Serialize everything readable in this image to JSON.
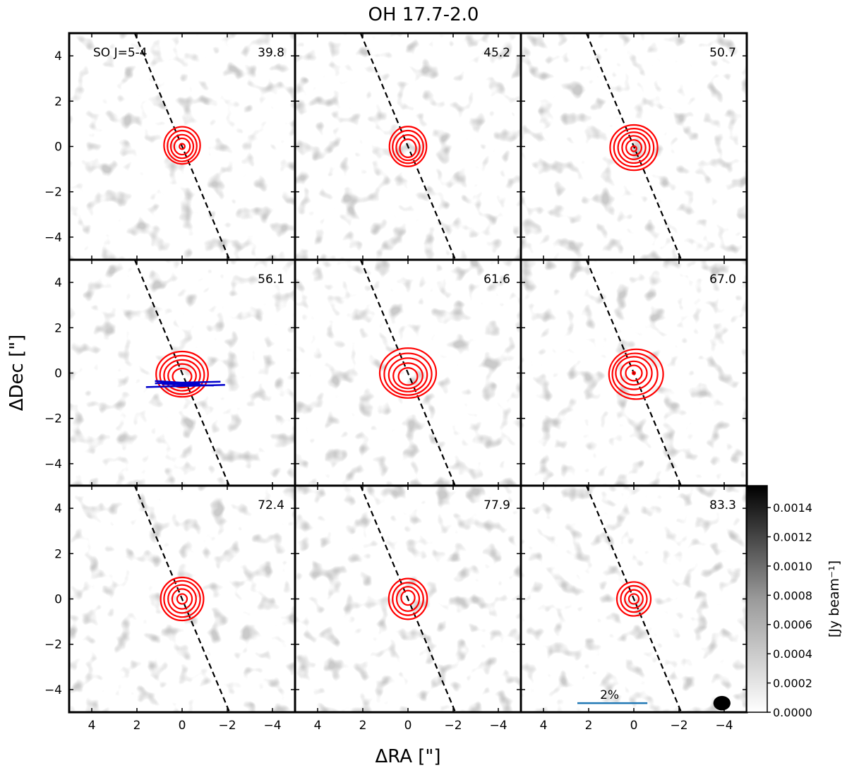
{
  "chart_data": {
    "type": "heatmap",
    "title": "OH 17.7-2.0",
    "xlabel": "ΔRA [\"]",
    "ylabel": "ΔDec [\"]",
    "xlim": [
      5,
      -5
    ],
    "ylim": [
      -5,
      5
    ],
    "x_ticks": [
      4,
      2,
      0,
      -2,
      -4
    ],
    "y_ticks": [
      4,
      2,
      0,
      -2,
      -4
    ],
    "x_tick_labels": [
      "4",
      "2",
      "0",
      "−2",
      "−4"
    ],
    "y_tick_labels": [
      "4",
      "2",
      "0",
      "−2",
      "−4"
    ],
    "line_label": "SO J=5-4",
    "velocities": [
      "39.8",
      "45.2",
      "50.7",
      "56.1",
      "61.6",
      "67.0",
      "72.4",
      "77.9",
      "83.3"
    ],
    "contour_color": "#ff0000",
    "vector_color": "#0000cc",
    "dashed_line": {
      "from": [
        2.1,
        5
      ],
      "to": [
        -2.1,
        -5
      ]
    },
    "panels": [
      {
        "velocity": "39.8",
        "contours": [
          {
            "rx": 0.8,
            "ry": 0.82,
            "cx": 0,
            "cy": 0.05
          },
          {
            "rx": 0.65,
            "ry": 0.68,
            "cx": 0,
            "cy": 0.02
          },
          {
            "rx": 0.5,
            "ry": 0.52,
            "cx": 0,
            "cy": 0
          },
          {
            "rx": 0.35,
            "ry": 0.36,
            "cx": 0,
            "cy": 0
          },
          {
            "rx": 0.12,
            "ry": 0.12,
            "cx": 0,
            "cy": 0
          }
        ]
      },
      {
        "velocity": "45.2",
        "contours": [
          {
            "rx": 0.82,
            "ry": 0.88,
            "cx": 0,
            "cy": 0
          },
          {
            "rx": 0.68,
            "ry": 0.72,
            "cx": 0,
            "cy": -0.02
          },
          {
            "rx": 0.52,
            "ry": 0.56,
            "cx": 0,
            "cy": -0.05
          },
          {
            "rx": 0.36,
            "ry": 0.4,
            "cx": 0,
            "cy": -0.08
          }
        ]
      },
      {
        "velocity": "50.7",
        "contours": [
          {
            "rx": 1.05,
            "ry": 1.0,
            "cx": 0,
            "cy": -0.05
          },
          {
            "rx": 0.88,
            "ry": 0.84,
            "cx": 0,
            "cy": -0.05
          },
          {
            "rx": 0.7,
            "ry": 0.68,
            "cx": 0,
            "cy": -0.05
          },
          {
            "rx": 0.52,
            "ry": 0.52,
            "cx": 0,
            "cy": -0.05
          },
          {
            "rx": 0.34,
            "ry": 0.34,
            "cx": 0,
            "cy": -0.05
          },
          {
            "rx": 0.12,
            "ry": 0.12,
            "cx": 0,
            "cy": -0.1
          }
        ]
      },
      {
        "velocity": "56.1",
        "contours": [
          {
            "rx": 1.15,
            "ry": 1.0,
            "cx": 0,
            "cy": -0.05
          },
          {
            "rx": 0.98,
            "ry": 0.85,
            "cx": 0,
            "cy": -0.08
          },
          {
            "rx": 0.8,
            "ry": 0.68,
            "cx": 0,
            "cy": -0.1
          },
          {
            "rx": 0.62,
            "ry": 0.52,
            "cx": 0,
            "cy": -0.12
          },
          {
            "rx": 0.42,
            "ry": 0.35,
            "cx": 0,
            "cy": -0.15
          }
        ],
        "vectors": [
          {
            "x1": 1.6,
            "y1": -0.62,
            "x2": -1.9,
            "y2": -0.52
          },
          {
            "x1": 1.2,
            "y1": -0.45,
            "x2": -1.7,
            "y2": -0.38
          },
          {
            "x1": 1.2,
            "y1": -0.35,
            "x2": -0.8,
            "y2": -0.48
          },
          {
            "x1": 0.9,
            "y1": -0.48,
            "x2": -1.4,
            "y2": -0.55
          }
        ]
      },
      {
        "velocity": "61.6",
        "contours": [
          {
            "rx": 1.25,
            "ry": 1.1,
            "cx": 0,
            "cy": 0
          },
          {
            "rx": 1.05,
            "ry": 0.92,
            "cx": 0,
            "cy": -0.05
          },
          {
            "rx": 0.85,
            "ry": 0.74,
            "cx": 0,
            "cy": -0.08
          },
          {
            "rx": 0.65,
            "ry": 0.56,
            "cx": 0,
            "cy": -0.12
          },
          {
            "rx": 0.42,
            "ry": 0.38,
            "cx": 0,
            "cy": -0.15
          }
        ]
      },
      {
        "velocity": "67.0",
        "contours": [
          {
            "rx": 1.2,
            "ry": 1.1,
            "cx": -0.1,
            "cy": -0.05
          },
          {
            "rx": 1.0,
            "ry": 0.92,
            "cx": -0.05,
            "cy": -0.05
          },
          {
            "rx": 0.8,
            "ry": 0.72,
            "cx": 0,
            "cy": 0
          },
          {
            "rx": 0.58,
            "ry": 0.52,
            "cx": 0,
            "cy": 0
          },
          {
            "rx": 0.36,
            "ry": 0.34,
            "cx": 0,
            "cy": 0
          },
          {
            "rx": 0.06,
            "ry": 0.06,
            "cx": 0,
            "cy": 0
          }
        ]
      },
      {
        "velocity": "72.4",
        "contours": [
          {
            "rx": 0.95,
            "ry": 0.95,
            "cx": 0,
            "cy": 0
          },
          {
            "rx": 0.8,
            "ry": 0.8,
            "cx": 0,
            "cy": 0
          },
          {
            "rx": 0.62,
            "ry": 0.62,
            "cx": 0,
            "cy": 0
          },
          {
            "rx": 0.44,
            "ry": 0.44,
            "cx": 0,
            "cy": 0
          },
          {
            "rx": 0.22,
            "ry": 0.22,
            "cx": 0,
            "cy": 0
          }
        ]
      },
      {
        "velocity": "77.9",
        "contours": [
          {
            "rx": 0.85,
            "ry": 0.9,
            "cx": 0,
            "cy": 0
          },
          {
            "rx": 0.68,
            "ry": 0.72,
            "cx": 0,
            "cy": 0
          },
          {
            "rx": 0.5,
            "ry": 0.54,
            "cx": 0,
            "cy": 0
          },
          {
            "rx": 0.3,
            "ry": 0.32,
            "cx": 0,
            "cy": 0.05
          }
        ]
      },
      {
        "velocity": "83.3",
        "contours": [
          {
            "rx": 0.75,
            "ry": 0.75,
            "cx": 0,
            "cy": 0
          },
          {
            "rx": 0.58,
            "ry": 0.58,
            "cx": 0,
            "cy": 0
          },
          {
            "rx": 0.4,
            "ry": 0.4,
            "cx": 0,
            "cy": 0
          },
          {
            "rx": 0.22,
            "ry": 0.22,
            "cx": 0,
            "cy": 0
          }
        ],
        "scale_bar": {
          "label": "2%",
          "x1": 2.5,
          "x2": -0.6,
          "y": -4.6,
          "color": "#1f77b4"
        },
        "beam": {
          "x": -3.9,
          "y": -4.6,
          "rx": 0.38,
          "ry": 0.32
        }
      }
    ],
    "colorbar": {
      "label": "[Jy beam⁻¹]",
      "min": 0.0,
      "max": 0.00155,
      "ticks": [
        0.0,
        0.0002,
        0.0004,
        0.0006,
        0.0008,
        0.001,
        0.0012,
        0.0014
      ],
      "tick_labels": [
        "0.0000",
        "0.0002",
        "0.0004",
        "0.0006",
        "0.0008",
        "0.0010",
        "0.0012",
        "0.0014"
      ],
      "cmap": "grey (white → black)"
    }
  }
}
